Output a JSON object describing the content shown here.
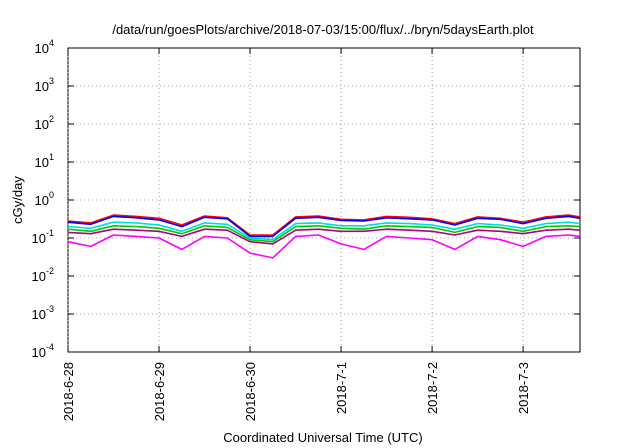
{
  "chart_data": {
    "type": "line",
    "title": "/data/run/goesPlots/archive/2018-07-03/15:00/flux/../bryn/5daysEarth.plot",
    "xlabel": "Coordinated Universal Time (UTC)",
    "ylabel": "cGy/day",
    "yscale": "log",
    "ylim": [
      0.0001,
      10000
    ],
    "y_ticks": [
      {
        "value": 0.0001,
        "base": "10",
        "exp": "-4"
      },
      {
        "value": 0.001,
        "base": "10",
        "exp": "-3"
      },
      {
        "value": 0.01,
        "base": "10",
        "exp": "-2"
      },
      {
        "value": 0.1,
        "base": "10",
        "exp": "-1"
      },
      {
        "value": 1,
        "base": "10",
        "exp": "0"
      },
      {
        "value": 10,
        "base": "10",
        "exp": "1"
      },
      {
        "value": 100,
        "base": "10",
        "exp": "2"
      },
      {
        "value": 1000,
        "base": "10",
        "exp": "3"
      },
      {
        "value": 10000,
        "base": "10",
        "exp": "4"
      }
    ],
    "xlim": [
      "2018-06-28",
      "2018-07-03 15:00"
    ],
    "x_ticks": [
      "2018-6-28",
      "2018-6-29",
      "2018-6-30",
      "2018-7-1",
      "2018-7-2",
      "2018-7-3"
    ],
    "grid": true,
    "x": [
      "2018-06-28 00:00",
      "2018-06-28 06:00",
      "2018-06-28 12:00",
      "2018-06-28 18:00",
      "2018-06-29 00:00",
      "2018-06-29 06:00",
      "2018-06-29 12:00",
      "2018-06-29 18:00",
      "2018-06-30 00:00",
      "2018-06-30 06:00",
      "2018-06-30 12:00",
      "2018-06-30 18:00",
      "2018-07-01 00:00",
      "2018-07-01 06:00",
      "2018-07-01 12:00",
      "2018-07-01 18:00",
      "2018-07-02 00:00",
      "2018-07-02 06:00",
      "2018-07-02 12:00",
      "2018-07-02 18:00",
      "2018-07-03 00:00",
      "2018-07-03 06:00",
      "2018-07-03 12:00",
      "2018-07-03 15:00"
    ],
    "series": [
      {
        "color": "#ff0000",
        "values": [
          0.28,
          0.25,
          0.4,
          0.37,
          0.33,
          0.22,
          0.38,
          0.34,
          0.12,
          0.12,
          0.36,
          0.38,
          0.31,
          0.3,
          0.37,
          0.35,
          0.32,
          0.24,
          0.36,
          0.33,
          0.26,
          0.36,
          0.4,
          0.36
        ]
      },
      {
        "color": "#0000ff",
        "values": [
          0.26,
          0.23,
          0.37,
          0.34,
          0.3,
          0.2,
          0.35,
          0.32,
          0.11,
          0.11,
          0.33,
          0.35,
          0.29,
          0.28,
          0.34,
          0.32,
          0.3,
          0.22,
          0.33,
          0.31,
          0.24,
          0.33,
          0.37,
          0.33
        ]
      },
      {
        "color": "#00dddd",
        "values": [
          0.2,
          0.18,
          0.26,
          0.25,
          0.22,
          0.15,
          0.25,
          0.23,
          0.1,
          0.09,
          0.24,
          0.25,
          0.21,
          0.21,
          0.25,
          0.24,
          0.22,
          0.17,
          0.24,
          0.22,
          0.18,
          0.24,
          0.26,
          0.24
        ]
      },
      {
        "color": "#00cc00",
        "values": [
          0.17,
          0.15,
          0.21,
          0.2,
          0.18,
          0.13,
          0.21,
          0.19,
          0.09,
          0.08,
          0.2,
          0.21,
          0.18,
          0.17,
          0.21,
          0.2,
          0.19,
          0.14,
          0.2,
          0.19,
          0.15,
          0.2,
          0.21,
          0.2
        ]
      },
      {
        "color": "#b0007f",
        "values": [
          0.14,
          0.13,
          0.17,
          0.16,
          0.15,
          0.11,
          0.17,
          0.16,
          0.08,
          0.07,
          0.16,
          0.17,
          0.15,
          0.15,
          0.17,
          0.16,
          0.15,
          0.12,
          0.16,
          0.15,
          0.13,
          0.16,
          0.17,
          0.16
        ]
      },
      {
        "color": "#ff00ff",
        "values": [
          0.08,
          0.06,
          0.12,
          0.11,
          0.1,
          0.05,
          0.11,
          0.1,
          0.04,
          0.03,
          0.11,
          0.12,
          0.07,
          0.05,
          0.11,
          0.1,
          0.09,
          0.05,
          0.11,
          0.09,
          0.06,
          0.11,
          0.12,
          0.11
        ]
      }
    ]
  }
}
